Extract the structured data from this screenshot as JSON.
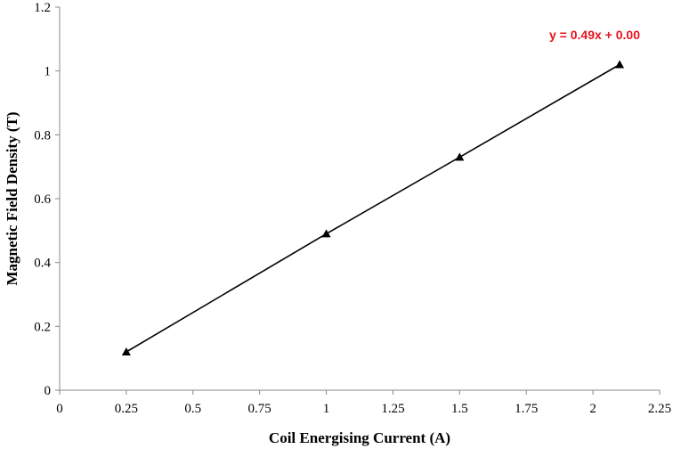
{
  "chart_data": {
    "type": "scatter",
    "title": "",
    "xlabel": "Coil Energising Current (A)",
    "ylabel": "Magnetic Field Density  (T)",
    "xlim": [
      0,
      2.25
    ],
    "ylim": [
      0,
      1.2
    ],
    "x_ticks": [
      "0",
      "0.25",
      "0.5",
      "0.75",
      "1",
      "1.25",
      "1.5",
      "1.75",
      "2",
      "2.25"
    ],
    "y_ticks": [
      "0",
      "0.2",
      "0.4",
      "0.6",
      "0.8",
      "1",
      "1.2"
    ],
    "grid": false,
    "marker": "triangle",
    "series": [
      {
        "x": [
          0.25,
          1.0,
          1.5,
          2.1
        ],
        "y": [
          0.12,
          0.49,
          0.73,
          1.02
        ]
      }
    ],
    "annotation": {
      "text": "y = 0.49x + 0.00",
      "color": "#e8141c"
    },
    "colors": {
      "series": "#000000"
    }
  }
}
